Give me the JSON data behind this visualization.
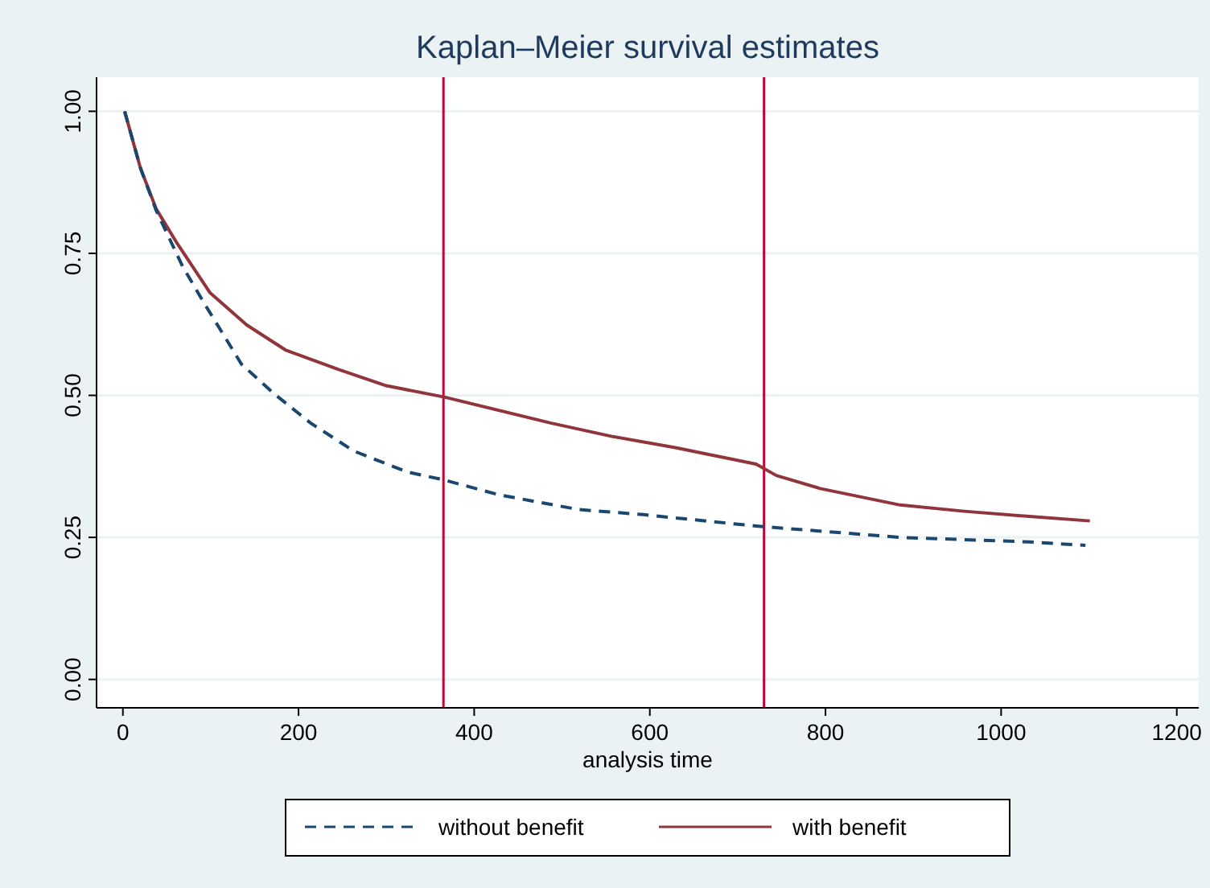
{
  "chart_data": {
    "type": "line",
    "title": "Kaplan–Meier survival estimates",
    "xlabel": "analysis time",
    "xlim": [
      -30,
      1225
    ],
    "ylim": [
      -0.05,
      1.06
    ],
    "xticks": [
      0,
      200,
      400,
      600,
      800,
      1000,
      1200
    ],
    "yticks": [
      {
        "value": 0,
        "label": "0.00"
      },
      {
        "value": 0.25,
        "label": "0.25"
      },
      {
        "value": 0.5,
        "label": "0.50"
      },
      {
        "value": 0.75,
        "label": "0.75"
      },
      {
        "value": 1,
        "label": "1.00"
      }
    ],
    "grid": "y",
    "legend": "bottom",
    "ref_lines": [
      {
        "axis": "x",
        "value": 365,
        "color": "#c10534"
      },
      {
        "axis": "x",
        "value": 730,
        "color": "#c10534"
      }
    ],
    "series": [
      {
        "name": "without benefit",
        "color": "#1a476f",
        "line_style": "dashed",
        "x": [
          2,
          20,
          38,
          68,
          93,
          135,
          172,
          214,
          263,
          324,
          366,
          428,
          519,
          593,
          721,
          885,
          1032,
          1096
        ],
        "values": [
          1.0,
          0.9,
          0.825,
          0.727,
          0.661,
          0.555,
          0.503,
          0.451,
          0.402,
          0.365,
          0.351,
          0.325,
          0.299,
          0.29,
          0.27,
          0.25,
          0.242,
          0.236
        ]
      },
      {
        "name": "with benefit",
        "color": "#90353b",
        "line_style": "solid",
        "x": [
          2,
          20,
          38,
          62,
          99,
          141,
          185,
          245,
          300,
          366,
          488,
          556,
          629,
          721,
          744,
          794,
          885,
          958,
          1032,
          1101
        ],
        "values": [
          1.0,
          0.9,
          0.828,
          0.767,
          0.681,
          0.624,
          0.58,
          0.546,
          0.517,
          0.497,
          0.451,
          0.428,
          0.408,
          0.379,
          0.359,
          0.336,
          0.307,
          0.296,
          0.287,
          0.279
        ]
      }
    ]
  }
}
